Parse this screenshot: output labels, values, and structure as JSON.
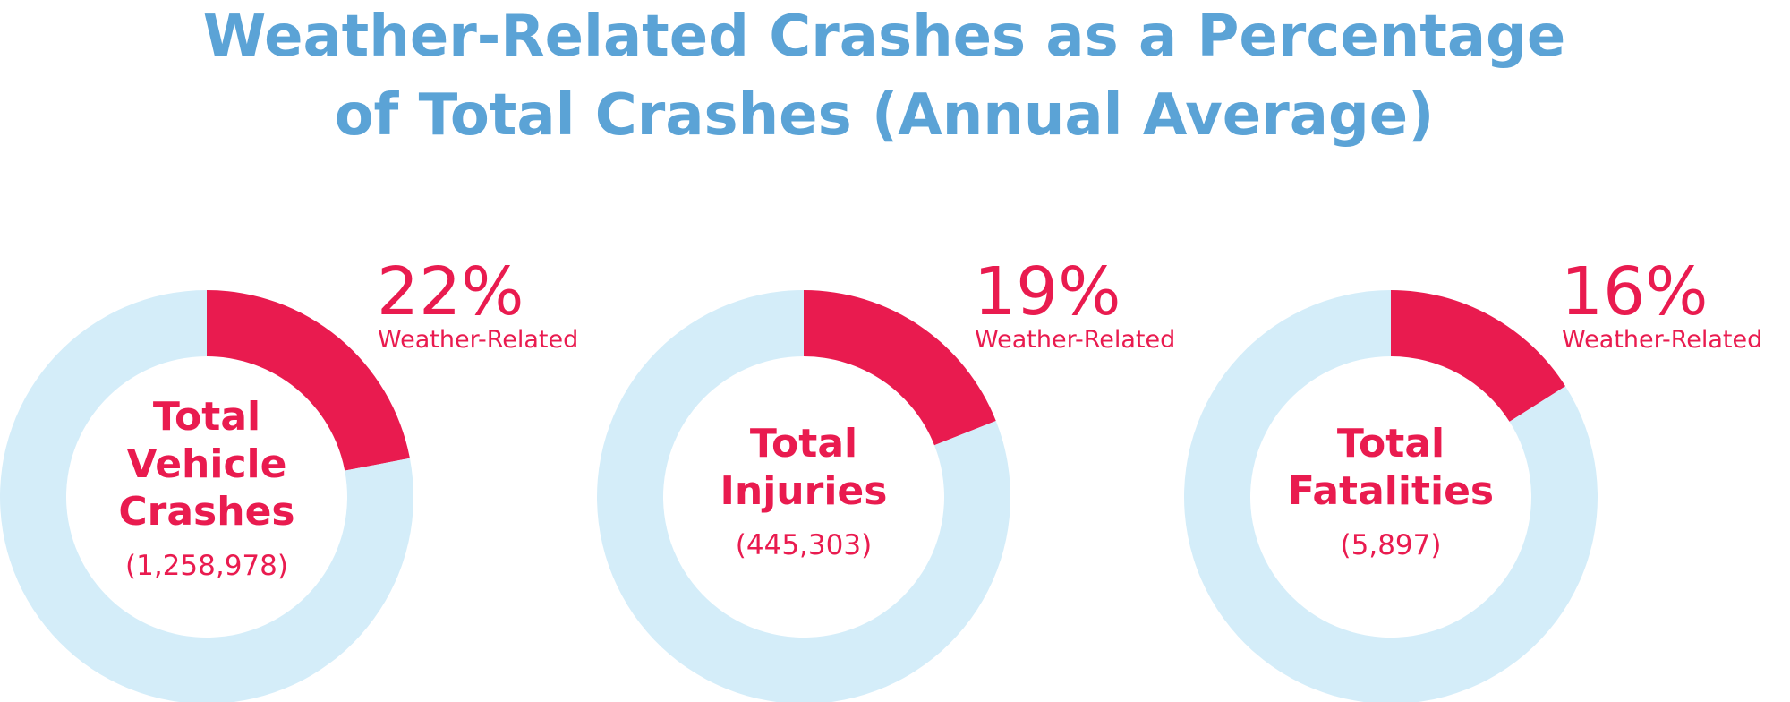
{
  "title": [
    "Weather-Related Crashes as a Percentage",
    "of Total Crashes (Annual Average)"
  ],
  "chart_data": [
    {
      "type": "pie",
      "donut": true,
      "center_label": "Total Vehicle Crashes",
      "center_sublabel": "(1,258,978)",
      "categories": [
        "Weather-Related",
        null
      ],
      "values": [
        22,
        78
      ],
      "value_labels": [
        "22%",
        null
      ],
      "colors": [
        "#e91b4f",
        "#d4edf9"
      ]
    },
    {
      "type": "pie",
      "donut": true,
      "center_label": "Total Injuries",
      "center_sublabel": "(445,303)",
      "categories": [
        "Weather-Related",
        null
      ],
      "values": [
        19,
        81
      ],
      "value_labels": [
        "19%",
        null
      ],
      "colors": [
        "#e91b4f",
        "#d4edf9"
      ]
    },
    {
      "type": "pie",
      "donut": true,
      "center_label": "Total Fatalities",
      "center_sublabel": "(5,897)",
      "categories": [
        "Weather-Related",
        null
      ],
      "values": [
        16,
        84
      ],
      "value_labels": [
        "16%",
        null
      ],
      "colors": [
        "#e91b4f",
        "#d4edf9"
      ]
    }
  ]
}
